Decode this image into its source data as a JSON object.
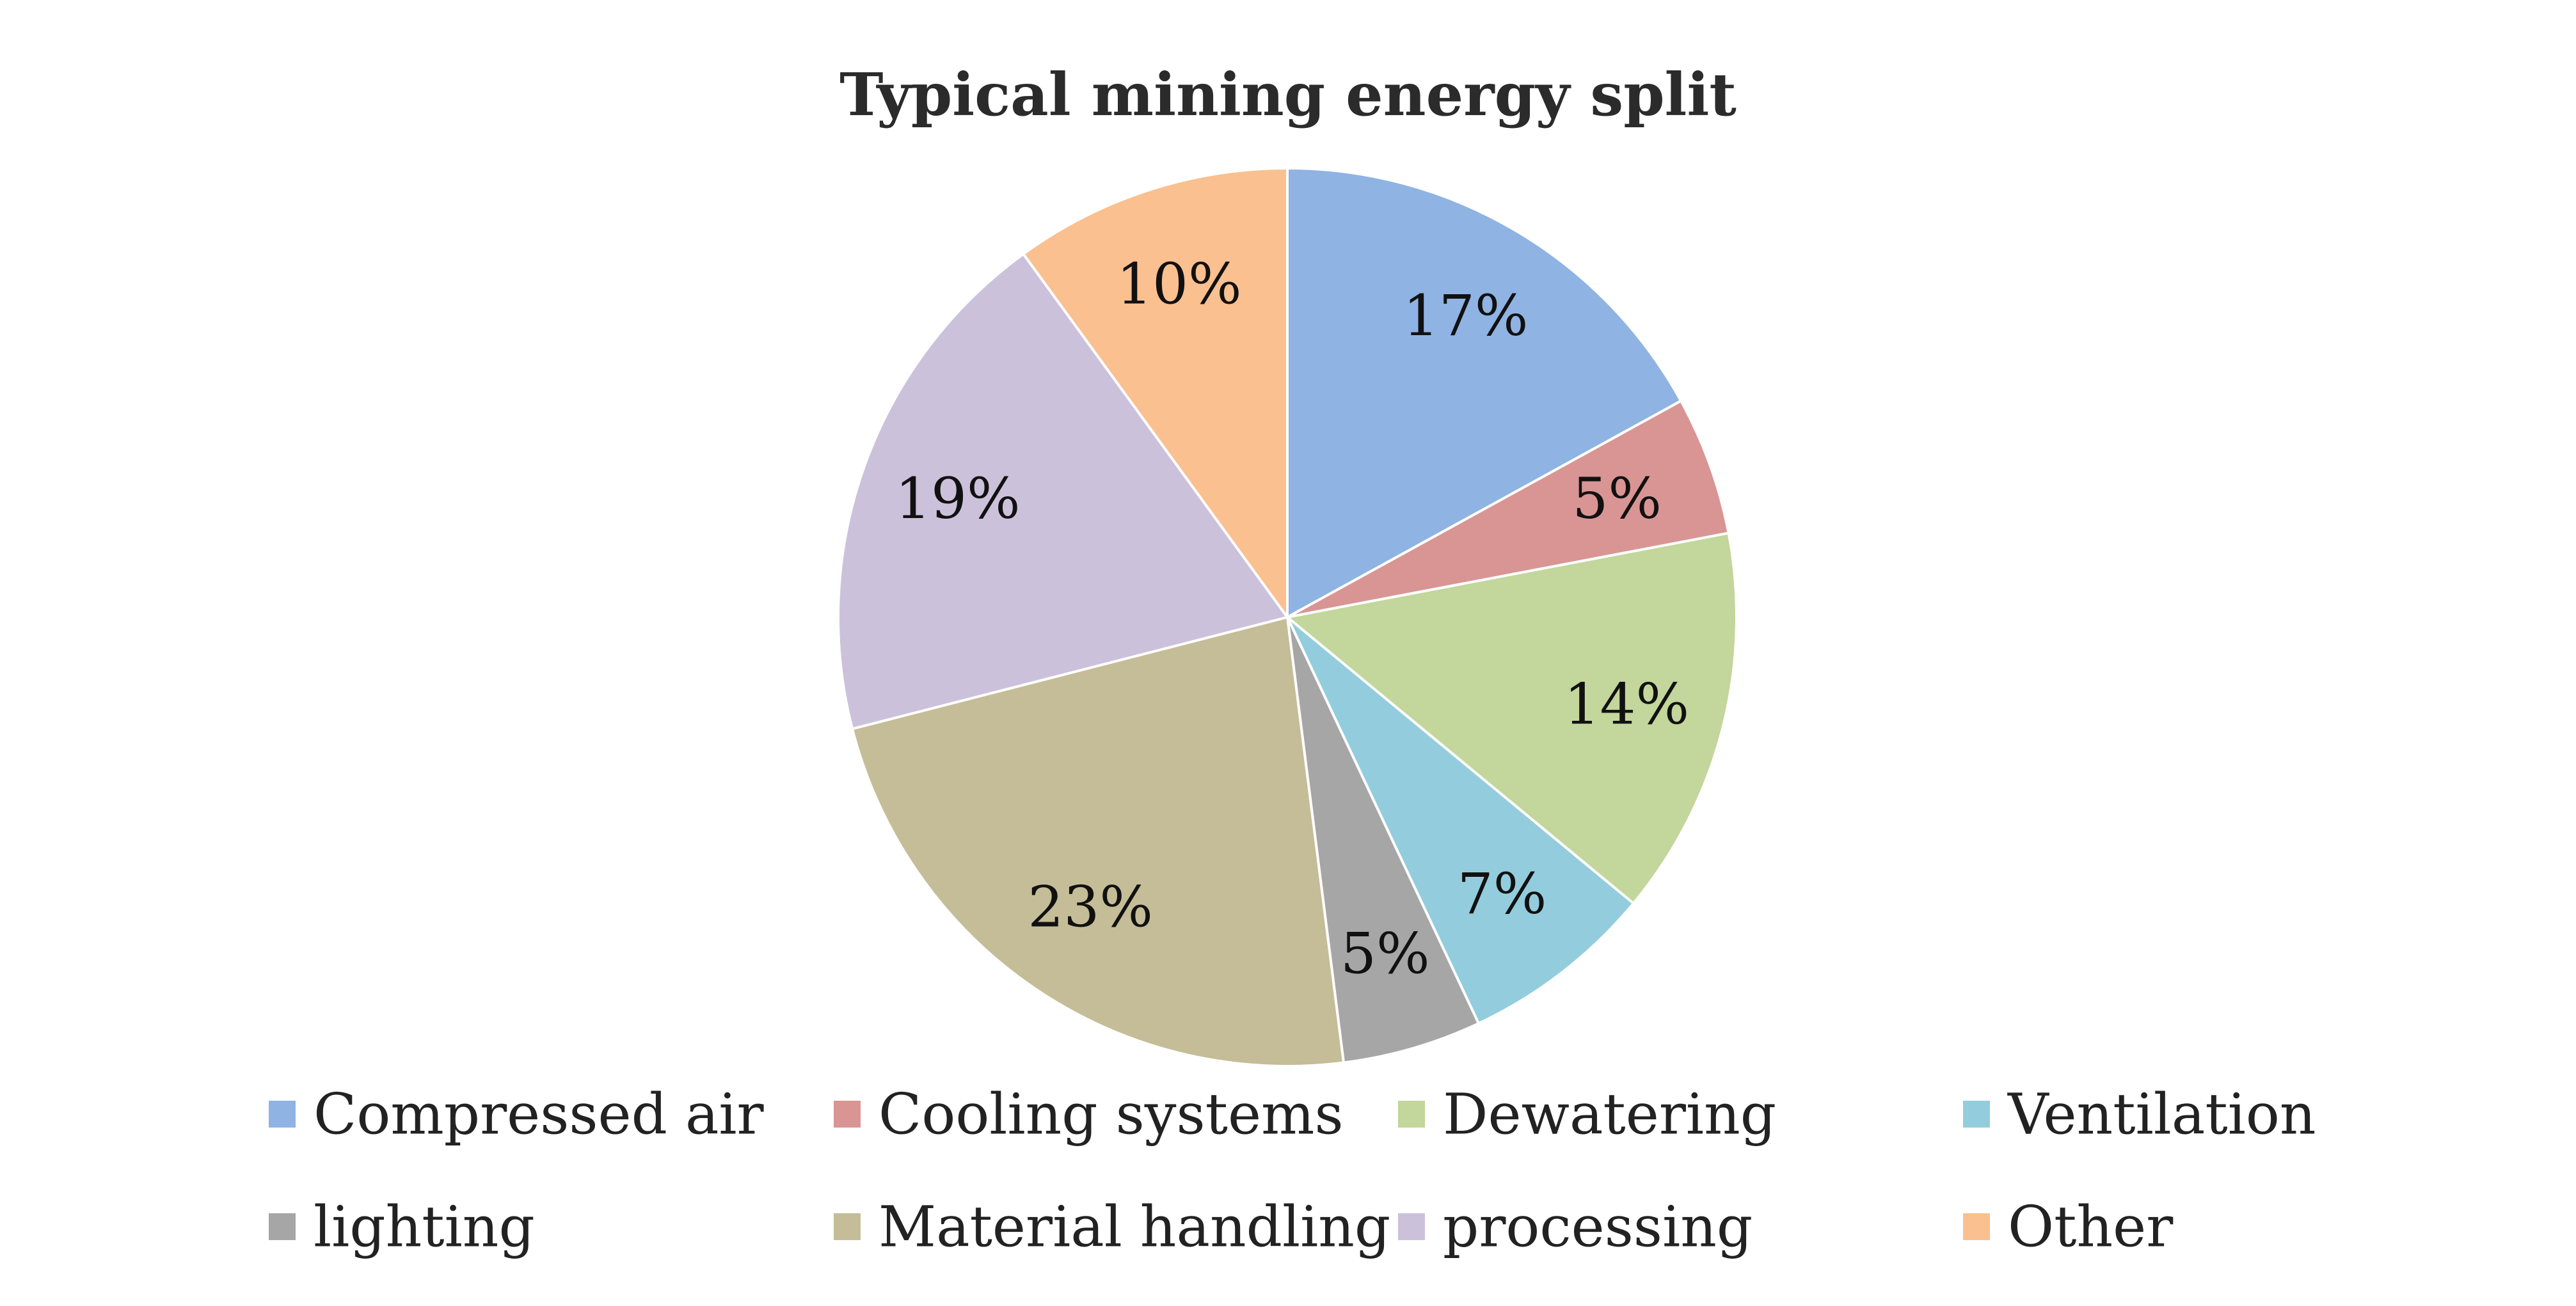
{
  "chart_data": {
    "type": "pie",
    "title": "Typical mining energy split",
    "start_angle": "12 o'clock",
    "direction": "clockwise",
    "slices": [
      {
        "name": "Compressed air",
        "value": 17,
        "label": "17%",
        "color": "#8fb3e2"
      },
      {
        "name": "Cooling systems",
        "value": 5,
        "label": "5%",
        "color": "#d99593"
      },
      {
        "name": "Dewatering",
        "value": 14,
        "label": "14%",
        "color": "#c3d69b"
      },
      {
        "name": "Ventilation",
        "value": 7,
        "label": "7%",
        "color": "#93cddd"
      },
      {
        "name": "lighting",
        "value": 5,
        "label": "5%",
        "color": "#a6a6a6"
      },
      {
        "name": "Material handling",
        "value": 23,
        "label": "23%",
        "color": "#c4bd97"
      },
      {
        "name": "processing",
        "value": 19,
        "label": "19%",
        "color": "#ccc1da"
      },
      {
        "name": "Other",
        "value": 10,
        "label": "10%",
        "color": "#fac08f"
      }
    ],
    "legend": "bottom",
    "slice_border_color": "#ffffff"
  }
}
